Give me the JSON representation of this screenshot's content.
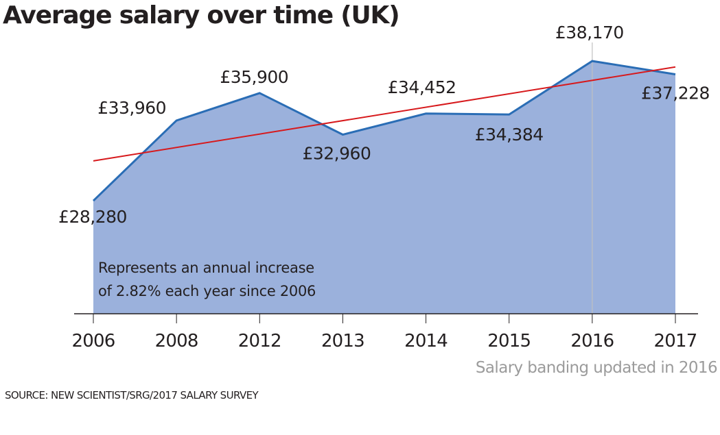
{
  "chart_data": {
    "type": "area",
    "title": "Average salary over time (UK)",
    "xlabel": "",
    "ylabel": "",
    "categories": [
      "2006",
      "2008",
      "2012",
      "2013",
      "2014",
      "2015",
      "2016",
      "2017"
    ],
    "series": [
      {
        "name": "Average salary",
        "values": [
          28280,
          33960,
          35900,
          32960,
          34452,
          34384,
          38170,
          37228
        ],
        "labels": [
          "£28,280",
          "£33,960",
          "£35,900",
          "£32,960",
          "£34,452",
          "£34,384",
          "£38,170",
          "£37,228"
        ],
        "color": "#2a6db5",
        "fill": "#9bb1dc"
      }
    ],
    "trendline": {
      "name": "Trend",
      "start": 31100,
      "end": 37750,
      "color": "#d7191c"
    },
    "ylim": [
      20280,
      42490
    ],
    "grid": false,
    "legend": "none",
    "marker_line": {
      "category": "2016",
      "color": "#c0c0c0"
    },
    "annotation": [
      "Represents an annual increase",
      "of 2.82% each year since 2006"
    ],
    "note": "Salary banding updated in 2016",
    "source": "SOURCE: NEW SCIENTIST/SRG/2017 SALARY SURVEY"
  }
}
